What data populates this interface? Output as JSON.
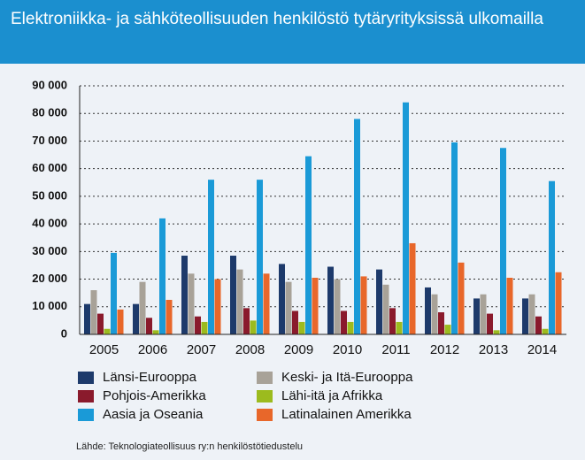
{
  "chart_data": {
    "type": "bar",
    "title": "Elektroniikka- ja sähköteollisuuden henkilöstö tytäryrityksissä ulkomailla",
    "categories": [
      "2005",
      "2006",
      "2007",
      "2008",
      "2009",
      "2010",
      "2011",
      "2012",
      "2013",
      "2014"
    ],
    "series": [
      {
        "name": "Länsi-Eurooppa",
        "color": "#1d3a6b",
        "values": [
          11000,
          11000,
          28500,
          28500,
          25500,
          24500,
          23500,
          17000,
          13000,
          13000
        ]
      },
      {
        "name": "Keski- ja Itä-Eurooppa",
        "color": "#a8a298",
        "values": [
          16000,
          19000,
          22000,
          23500,
          19000,
          20000,
          18000,
          14500,
          14500,
          14500
        ]
      },
      {
        "name": "Pohjois-Amerikka",
        "color": "#8a1a2c",
        "values": [
          7500,
          6000,
          6500,
          9500,
          8500,
          8500,
          9500,
          8000,
          7500,
          6500
        ]
      },
      {
        "name": "Lähi-itä ja Afrikka",
        "color": "#9cbb1e",
        "values": [
          2000,
          1500,
          4500,
          5000,
          4500,
          4500,
          4500,
          3500,
          1500,
          2000
        ]
      },
      {
        "name": "Aasia ja Oseania",
        "color": "#1a9ad7",
        "values": [
          29500,
          42000,
          56000,
          56000,
          64500,
          78000,
          84000,
          69500,
          67500,
          55500
        ]
      },
      {
        "name": "Latinalainen Amerikka",
        "color": "#e8672a",
        "values": [
          9000,
          12500,
          20000,
          22000,
          20500,
          21000,
          33000,
          26000,
          20500,
          22500
        ]
      }
    ],
    "ylim": [
      0,
      90000
    ],
    "yticks": [
      0,
      {
        "value": 10000,
        "label": "10 000"
      },
      {
        "value": 20000,
        "label": "20 000"
      },
      {
        "value": 30000,
        "label": "30 000"
      },
      {
        "value": 40000,
        "label": "40 000"
      },
      {
        "value": 50000,
        "label": "50 000"
      },
      {
        "value": 60000,
        "label": "60 000"
      },
      {
        "value": 70000,
        "label": "70 000"
      },
      {
        "value": 80000,
        "label": "80 000"
      },
      {
        "value": 90000,
        "label": "90 000"
      }
    ],
    "grid": true,
    "source": "Lähde: Teknologiateollisuus ry:n henkilöstötiedustelu"
  }
}
